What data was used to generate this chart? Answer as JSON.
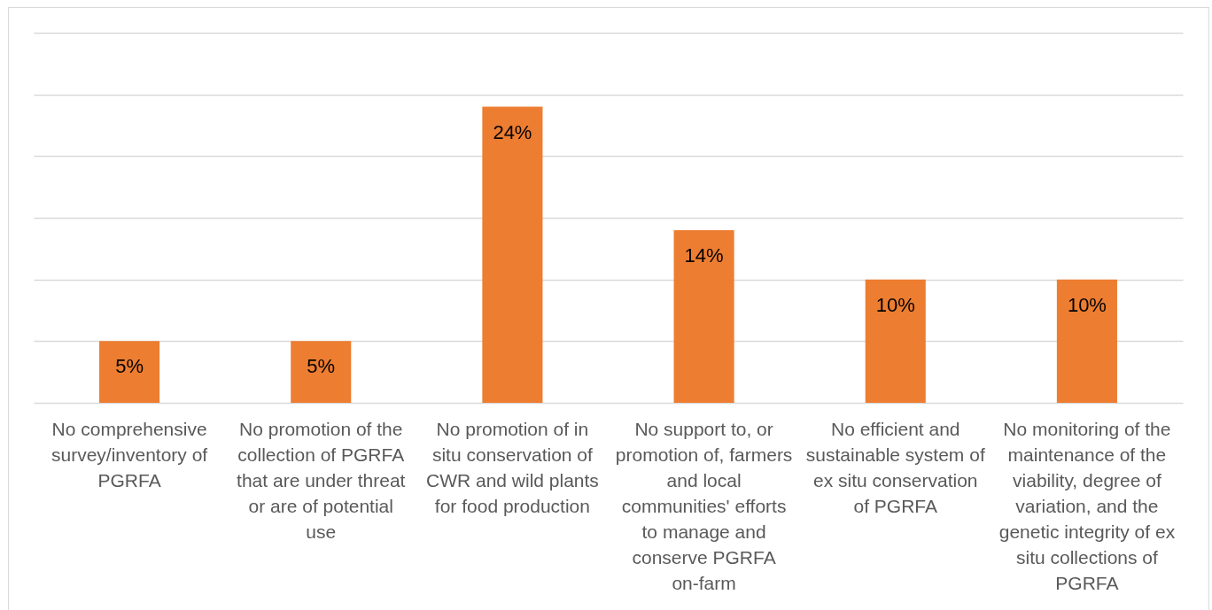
{
  "chart_data": {
    "type": "bar",
    "categories": [
      "No comprehensive survey/inventory of PGRFA",
      "No promotion of the collection of PGRFA that are under threat or are of potential use",
      "No promotion of in situ conservation of CWR and wild plants for food production",
      "No support to, or promotion of, farmers and local communities' efforts to manage and conserve PGRFA on-farm",
      "No efficient and sustainable system of ex situ conservation of PGRFA",
      "No monitoring of the maintenance of the viability, degree of variation, and the genetic integrity of ex situ collections of PGRFA"
    ],
    "values": [
      5,
      5,
      24,
      14,
      10,
      10
    ],
    "value_labels": [
      "5%",
      "5%",
      "24%",
      "14%",
      "10%",
      "10%"
    ],
    "color": "#ed7d31",
    "ylim": [
      0,
      30
    ],
    "yticks": [
      {
        "value": 0,
        "label": null
      },
      {
        "value": 5,
        "label": null
      },
      {
        "value": 10,
        "label": null
      },
      {
        "value": 15,
        "label": null
      },
      {
        "value": 20,
        "label": null
      },
      {
        "value": 25,
        "label": null
      },
      {
        "value": 30,
        "label": null
      }
    ],
    "grid": "y",
    "tick_labels": "x"
  }
}
